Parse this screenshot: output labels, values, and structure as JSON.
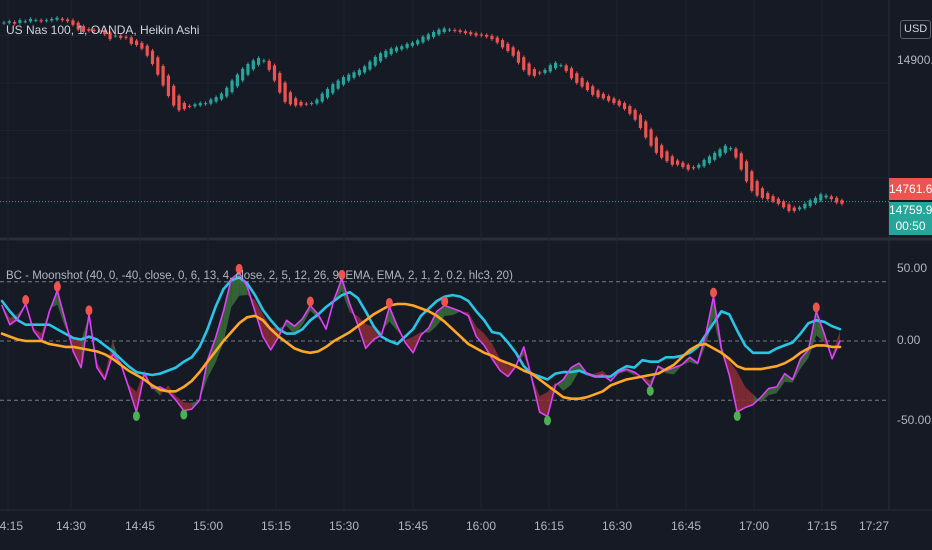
{
  "header": {
    "title": "US Nas 100, 1, OANDA, Heikin Ashi",
    "currency": "USD"
  },
  "indicator": {
    "title": "BC - Moonshot (40, 0, -40, close, 0, 6, 13, 4, close, 2, 5, 12, 26, 9, EMA, EMA, 2, 1, 2, 0.2, hlc3, 20)"
  },
  "price_axis": {
    "ticks": [
      "14900.0"
    ],
    "last_price_red": "14761.6",
    "last_price_green": "14759.9",
    "countdown": "00:50"
  },
  "indicator_axis": {
    "ticks": [
      "50.00",
      "0.00",
      "-50.00"
    ]
  },
  "time_axis": {
    "ticks": [
      "14:15",
      "14:30",
      "14:45",
      "15:00",
      "15:15",
      "15:30",
      "15:45",
      "16:00",
      "16:15",
      "16:30",
      "16:45",
      "17:00",
      "17:15",
      "17:27"
    ]
  },
  "colors": {
    "bg": "#161a25",
    "up": "#26a69a",
    "down": "#ef5350",
    "cyan": "#29c5e6",
    "magenta": "#e040fb",
    "orange": "#ffa726",
    "dark_green": "#3a6e3a",
    "dark_red": "#8b2e35"
  },
  "chart_data": [
    {
      "type": "candlestick",
      "title": "US Nas 100, 1, OANDA, Heikin Ashi",
      "style": "heikin-ashi",
      "ylim": [
        14730,
        14930
      ],
      "price_levels": [
        14900.0,
        14761.6,
        14759.9
      ],
      "close": [
        14911,
        14912,
        14910,
        14913,
        14912,
        14914,
        14913,
        14912,
        14913,
        14914,
        14915,
        14913,
        14912,
        14909,
        14905,
        14903,
        14904,
        14904,
        14904,
        14901,
        14897,
        14900,
        14898,
        14898,
        14893,
        14892,
        14889,
        14883,
        14876,
        14867,
        14858,
        14849,
        14841,
        14837,
        14838,
        14840,
        14842,
        14843,
        14843,
        14846,
        14848,
        14851,
        14856,
        14862,
        14867,
        14872,
        14876,
        14879,
        14881,
        14879,
        14871,
        14862,
        14852,
        14844,
        14842,
        14841,
        14841,
        14842,
        14843,
        14846,
        14851,
        14855,
        14859,
        14862,
        14865,
        14867,
        14869,
        14871,
        14874,
        14878,
        14882,
        14885,
        14887,
        14889,
        14890,
        14891,
        14893,
        14894,
        14896,
        14899,
        14901,
        14903,
        14905,
        14906,
        14905,
        14904,
        14903,
        14902,
        14901,
        14900,
        14900,
        14899,
        14897,
        14894,
        14890,
        14887,
        14883,
        14877,
        14871,
        14867,
        14866,
        14868,
        14871,
        14875,
        14877,
        14875,
        14870,
        14864,
        14860,
        14857,
        14854,
        14850,
        14848,
        14847,
        14845,
        14843,
        14841,
        14838,
        14834,
        14829,
        14822,
        14814,
        14807,
        14801,
        14797,
        14794,
        14791,
        14791,
        14789,
        14787,
        14788,
        14791,
        14795,
        14798,
        14801,
        14804,
        14807,
        14805,
        14797,
        14787,
        14777,
        14769,
        14765,
        14763,
        14762,
        14760,
        14758,
        14755,
        14752,
        14752,
        14755,
        14758,
        14761,
        14763,
        14766,
        14765,
        14762,
        14759,
        14758
      ]
    },
    {
      "type": "line",
      "title": "BC - Moonshot (40, 0, -40, close, 0, 6, 13, 4, close, 2, 5, 12, 26, 9, EMA, EMA, 2, 1, 2, 0.2, hlc3, 20)",
      "ylim": [
        -80,
        70
      ],
      "reference_lines": [
        40,
        0,
        -40
      ],
      "series": [
        {
          "color": "#29c5e6",
          "values": [
            27,
            20,
            14,
            11,
            11,
            11,
            11,
            8,
            5,
            2,
            1,
            3,
            1,
            -3,
            -7,
            -12,
            -17,
            -21,
            -22,
            -23,
            -22,
            -20,
            -18,
            -14,
            -11,
            -4,
            8,
            23,
            35,
            41,
            43,
            39,
            31,
            21,
            14,
            8,
            5,
            5,
            8,
            14,
            18,
            23,
            27,
            31,
            33,
            29,
            20,
            10,
            3,
            0,
            -2,
            3,
            8,
            17,
            22,
            27,
            30,
            31,
            30,
            27,
            20,
            14,
            6,
            5,
            -1,
            -8,
            -17,
            -22,
            -24,
            -26,
            -22,
            -21,
            -21,
            -20,
            -22,
            -24,
            -24,
            -24,
            -20,
            -17,
            -18,
            -13,
            -14,
            -14,
            -11,
            -11,
            -10,
            -8,
            -4,
            4,
            12,
            20,
            18,
            7,
            -3,
            -8,
            -8,
            -8,
            -5,
            -3,
            -1,
            5,
            12,
            14,
            13,
            10,
            8
          ]
        },
        {
          "color": "#e040fb",
          "values": [
            24,
            11,
            15,
            25,
            7,
            0,
            20,
            34,
            14,
            -7,
            -18,
            18,
            -18,
            -26,
            -9,
            -15,
            -31,
            -48,
            -22,
            -32,
            -31,
            -34,
            -40,
            -47,
            -46,
            -40,
            -13,
            2,
            20,
            42,
            46,
            37,
            20,
            3,
            -6,
            3,
            14,
            10,
            15,
            24,
            18,
            8,
            28,
            42,
            25,
            11,
            -5,
            1,
            4,
            23,
            10,
            -1,
            -8,
            4,
            9,
            20,
            24,
            22,
            20,
            17,
            3,
            -3,
            -12,
            -20,
            -24,
            -17,
            -4,
            -25,
            -48,
            -51,
            -30,
            -26,
            -18,
            -15,
            -22,
            -24,
            -23,
            -27,
            -21,
            -19,
            -21,
            -25,
            -31,
            -17,
            -20,
            -18,
            -16,
            -11,
            -15,
            4,
            30,
            -5,
            -23,
            -48,
            -45,
            -43,
            -38,
            -32,
            -31,
            -22,
            -26,
            -12,
            -6,
            20,
            5,
            -12,
            0
          ]
        },
        {
          "color": "#ffa726",
          "values": [
            5,
            3,
            1,
            0,
            0,
            0,
            -2,
            -3,
            -4,
            -4,
            -5,
            -6,
            -7,
            -9,
            -12,
            -16,
            -20,
            -23,
            -26,
            -30,
            -33,
            -34,
            -34,
            -31,
            -27,
            -21,
            -14,
            -7,
            0,
            6,
            12,
            16,
            17,
            14,
            8,
            3,
            -1,
            -5,
            -7,
            -8,
            -7,
            -4,
            0,
            3,
            6,
            10,
            14,
            18,
            21,
            24,
            25,
            25,
            24,
            22,
            20,
            17,
            13,
            8,
            3,
            -2,
            -5,
            -8,
            -10,
            -13,
            -15,
            -17,
            -20,
            -22,
            -26,
            -30,
            -34,
            -38,
            -39,
            -39,
            -38,
            -36,
            -34,
            -30,
            -28,
            -26,
            -25,
            -24,
            -23,
            -22,
            -19,
            -16,
            -11,
            -6,
            -3,
            -2,
            -5,
            -8,
            -12,
            -17,
            -19,
            -19,
            -19,
            -18,
            -17,
            -15,
            -12,
            -8,
            -5,
            -3,
            -3,
            -4,
            -4
          ]
        }
      ]
    }
  ]
}
